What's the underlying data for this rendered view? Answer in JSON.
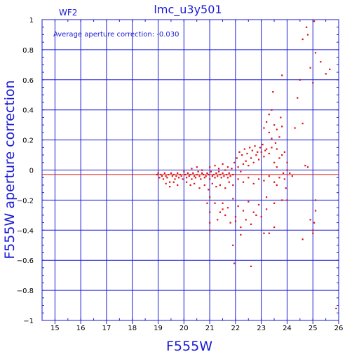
{
  "chart_data": {
    "type": "scatter",
    "title": "lmc_u3y501",
    "chip_label": "WF2",
    "annotation": "Average aperture correction: -0.030",
    "xlabel": "F555W",
    "ylabel": "F555W aperture correction",
    "xlim": [
      14.5,
      26
    ],
    "ylim": [
      -1,
      1
    ],
    "x_ticks": [
      15,
      16,
      17,
      18,
      19,
      20,
      21,
      22,
      23,
      24,
      25,
      26
    ],
    "y_ticks": [
      -1,
      -0.8,
      -0.6,
      -0.4,
      -0.2,
      0,
      0.2,
      0.4,
      0.6,
      0.8,
      1
    ],
    "y_tick_labels": [
      "−1",
      "−0.8",
      "−0.6",
      "−0.4",
      "−0.2",
      "0",
      "0.2",
      "0.4",
      "0.6",
      "0.8",
      "1"
    ],
    "grid": true,
    "reference_lines": [
      {
        "y": 0.0,
        "color": "#1a1ad6"
      },
      {
        "y": -0.03,
        "color": "#e01010"
      }
    ],
    "points": [
      [
        18.95,
        -0.03
      ],
      [
        19.0,
        -0.02
      ],
      [
        19.05,
        -0.05
      ],
      [
        19.1,
        -0.03
      ],
      [
        19.15,
        -0.04
      ],
      [
        19.2,
        -0.06
      ],
      [
        19.25,
        -0.02
      ],
      [
        19.3,
        -0.04
      ],
      [
        19.35,
        -0.05
      ],
      [
        19.4,
        -0.03
      ],
      [
        19.45,
        -0.08
      ],
      [
        19.5,
        -0.02
      ],
      [
        19.55,
        -0.04
      ],
      [
        19.6,
        -0.03
      ],
      [
        19.65,
        -0.06
      ],
      [
        19.7,
        -0.04
      ],
      [
        19.75,
        -0.02
      ],
      [
        19.8,
        -0.05
      ],
      [
        19.85,
        -0.03
      ],
      [
        19.9,
        -0.04
      ],
      [
        19.95,
        -0.06
      ],
      [
        20.0,
        -0.01
      ],
      [
        20.05,
        -0.03
      ],
      [
        20.1,
        -0.05
      ],
      [
        20.15,
        -0.02
      ],
      [
        20.2,
        -0.04
      ],
      [
        20.25,
        -0.03
      ],
      [
        20.3,
        -0.06
      ],
      [
        20.35,
        -0.02
      ],
      [
        20.4,
        -0.04
      ],
      [
        20.45,
        -0.05
      ],
      [
        20.5,
        -0.03
      ],
      [
        20.55,
        -0.01
      ],
      [
        20.6,
        -0.04
      ],
      [
        20.65,
        -0.06
      ],
      [
        20.7,
        -0.02
      ],
      [
        20.75,
        -0.03
      ],
      [
        20.8,
        -0.05
      ],
      [
        20.85,
        -0.04
      ],
      [
        20.9,
        -0.02
      ],
      [
        20.95,
        -0.03
      ],
      [
        21.0,
        -0.06
      ],
      [
        21.05,
        -0.01
      ],
      [
        21.1,
        -0.04
      ],
      [
        21.15,
        -0.03
      ],
      [
        21.2,
        -0.05
      ],
      [
        21.25,
        -0.02
      ],
      [
        21.3,
        -0.04
      ],
      [
        21.35,
        -0.01
      ],
      [
        21.4,
        -0.03
      ],
      [
        21.45,
        -0.05
      ],
      [
        21.5,
        -0.02
      ],
      [
        21.55,
        -0.04
      ],
      [
        21.6,
        0.0
      ],
      [
        21.65,
        -0.03
      ],
      [
        21.7,
        -0.05
      ],
      [
        21.75,
        -0.02
      ],
      [
        21.8,
        -0.04
      ],
      [
        21.85,
        0.01
      ],
      [
        21.9,
        -0.03
      ],
      [
        19.3,
        -0.09
      ],
      [
        19.45,
        -0.11
      ],
      [
        19.6,
        -0.08
      ],
      [
        19.75,
        -0.1
      ],
      [
        20.1,
        -0.08
      ],
      [
        20.25,
        -0.1
      ],
      [
        20.4,
        -0.09
      ],
      [
        20.6,
        -0.12
      ],
      [
        20.8,
        -0.1
      ],
      [
        20.95,
        -0.13
      ],
      [
        21.1,
        -0.09
      ],
      [
        21.25,
        -0.11
      ],
      [
        21.4,
        -0.1
      ],
      [
        21.6,
        -0.12
      ],
      [
        21.75,
        -0.08
      ],
      [
        21.9,
        -0.1
      ],
      [
        20.3,
        0.01
      ],
      [
        20.5,
        0.02
      ],
      [
        20.7,
        0.0
      ],
      [
        21.0,
        0.02
      ],
      [
        21.2,
        0.03
      ],
      [
        21.35,
        0.01
      ],
      [
        21.5,
        0.04
      ],
      [
        21.7,
        0.02
      ],
      [
        21.95,
        0.05
      ],
      [
        22.1,
        0.02
      ],
      [
        22.2,
        -0.01
      ],
      [
        22.3,
        0.04
      ],
      [
        22.4,
        0.06
      ],
      [
        22.5,
        0.03
      ],
      [
        22.6,
        0.08
      ],
      [
        22.7,
        0.05
      ],
      [
        22.8,
        0.1
      ],
      [
        22.9,
        0.07
      ],
      [
        23.0,
        0.12
      ],
      [
        23.1,
        0.09
      ],
      [
        23.2,
        0.14
      ],
      [
        23.3,
        0.11
      ],
      [
        22.05,
        0.08
      ],
      [
        22.15,
        0.12
      ],
      [
        22.25,
        0.1
      ],
      [
        22.35,
        0.14
      ],
      [
        22.45,
        0.11
      ],
      [
        22.55,
        0.15
      ],
      [
        22.65,
        0.13
      ],
      [
        22.75,
        0.16
      ],
      [
        22.85,
        0.12
      ],
      [
        22.95,
        0.15
      ],
      [
        23.05,
        0.17
      ],
      [
        23.15,
        0.13
      ],
      [
        22.1,
        -0.06
      ],
      [
        22.3,
        -0.08
      ],
      [
        22.5,
        -0.05
      ],
      [
        22.7,
        -0.09
      ],
      [
        22.9,
        -0.06
      ],
      [
        23.1,
        -0.07
      ],
      [
        23.3,
        -0.04
      ],
      [
        23.5,
        -0.08
      ],
      [
        23.7,
        -0.05
      ],
      [
        23.9,
        -0.06
      ],
      [
        21.5,
        -0.22
      ],
      [
        21.7,
        -0.25
      ],
      [
        21.9,
        -0.19
      ],
      [
        22.1,
        -0.24
      ],
      [
        22.3,
        -0.27
      ],
      [
        22.5,
        -0.21
      ],
      [
        22.7,
        -0.28
      ],
      [
        22.9,
        -0.23
      ],
      [
        23.2,
        -0.26
      ],
      [
        23.5,
        -0.22
      ],
      [
        21.0,
        -0.18
      ],
      [
        21.2,
        -0.22
      ],
      [
        21.4,
        -0.28
      ],
      [
        21.6,
        -0.3
      ],
      [
        21.8,
        -0.35
      ],
      [
        22.0,
        -0.31
      ],
      [
        22.2,
        -0.38
      ],
      [
        22.4,
        -0.33
      ],
      [
        22.6,
        -0.36
      ],
      [
        22.8,
        -0.3
      ],
      [
        21.9,
        -0.5
      ],
      [
        21.95,
        -0.62
      ],
      [
        22.6,
        -0.64
      ],
      [
        22.2,
        -0.43
      ],
      [
        23.1,
        -0.42
      ],
      [
        23.3,
        -0.42
      ],
      [
        23.5,
        -0.38
      ],
      [
        23.8,
        -0.2
      ],
      [
        24.0,
        -0.2
      ],
      [
        24.6,
        -0.46
      ],
      [
        21.0,
        -0.28
      ],
      [
        21.0,
        -0.35
      ],
      [
        21.0,
        -0.4
      ],
      [
        20.9,
        -0.22
      ],
      [
        21.3,
        -0.33
      ],
      [
        21.5,
        -0.26
      ],
      [
        22.0,
        -0.34
      ],
      [
        23.0,
        -0.31
      ],
      [
        23.2,
        -0.18
      ],
      [
        23.6,
        -0.1
      ],
      [
        23.1,
        0.28
      ],
      [
        23.2,
        0.32
      ],
      [
        23.3,
        0.25
      ],
      [
        23.4,
        0.21
      ],
      [
        23.5,
        0.3
      ],
      [
        23.6,
        0.27
      ],
      [
        23.7,
        0.22
      ],
      [
        23.8,
        0.29
      ],
      [
        23.55,
        0.18
      ],
      [
        23.75,
        0.35
      ],
      [
        23.3,
        0.37
      ],
      [
        23.4,
        0.4
      ],
      [
        23.45,
        0.52
      ],
      [
        23.8,
        0.63
      ],
      [
        23.5,
        0.05
      ],
      [
        23.6,
        0.02
      ],
      [
        23.7,
        0.08
      ],
      [
        23.9,
        0.12
      ],
      [
        24.0,
        0.05
      ],
      [
        23.85,
        -0.02
      ],
      [
        23.4,
        0.15
      ],
      [
        23.6,
        0.14
      ],
      [
        23.8,
        0.1
      ],
      [
        24.0,
        0.0
      ],
      [
        24.2,
        -0.04
      ],
      [
        24.3,
        0.28
      ],
      [
        24.4,
        0.48
      ],
      [
        24.5,
        0.6
      ],
      [
        24.6,
        0.31
      ],
      [
        24.7,
        0.03
      ],
      [
        24.8,
        0.02
      ],
      [
        24.75,
        0.95
      ],
      [
        24.8,
        0.9
      ],
      [
        24.6,
        0.87
      ],
      [
        25.05,
        0.99
      ],
      [
        25.1,
        0.78
      ],
      [
        24.9,
        0.68
      ],
      [
        25.0,
        0.58
      ],
      [
        25.3,
        0.72
      ],
      [
        25.5,
        0.64
      ],
      [
        25.65,
        0.67
      ],
      [
        25.1,
        -0.27
      ],
      [
        25.05,
        -0.35
      ],
      [
        25.0,
        -0.4
      ],
      [
        25.1,
        -0.2
      ],
      [
        24.9,
        -0.33
      ],
      [
        25.0,
        -0.42
      ],
      [
        25.9,
        -0.92
      ],
      [
        24.1,
        -0.02
      ],
      [
        23.95,
        -0.12
      ]
    ]
  }
}
